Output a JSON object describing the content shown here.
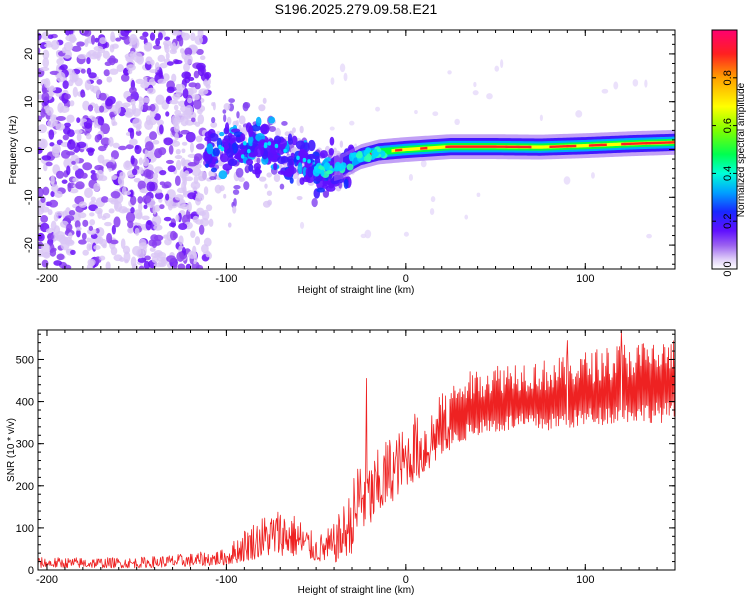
{
  "title": "S196.2025.279.09.58.E21",
  "chart_data": [
    {
      "type": "heatmap",
      "name": "spectrogram",
      "xlabel": "Height of straight line (km)",
      "ylabel": "Frequency (Hz)",
      "xlim": [
        -205,
        150
      ],
      "ylim": [
        -25,
        25
      ],
      "x_ticks": [
        -200,
        -100,
        0,
        100
      ],
      "y_ticks": [
        -20,
        -10,
        0,
        10,
        20
      ],
      "colorbar": {
        "label": "Normalized spectral amplitude",
        "range": [
          0,
          1
        ],
        "ticks": [
          0.0,
          0.2,
          0.4,
          0.6,
          0.8
        ],
        "colormap": [
          "#ffffff",
          "#d8c8f4",
          "#9050e8",
          "#6000ff",
          "#1020ff",
          "#00a0ff",
          "#00ffd0",
          "#00ff40",
          "#80ff00",
          "#ffff00",
          "#ffa000",
          "#ff2000",
          "#ff0060"
        ]
      },
      "ridge": [
        {
          "x": -110,
          "f": -0.5
        },
        {
          "x": -80,
          "f": 0.5
        },
        {
          "x": -60,
          "f": -2.0
        },
        {
          "x": -45,
          "f": -4.5
        },
        {
          "x": -35,
          "f": -3.5
        },
        {
          "x": -25,
          "f": -1.5
        },
        {
          "x": -15,
          "f": -0.5
        },
        {
          "x": 0,
          "f": 0.0
        },
        {
          "x": 25,
          "f": 0.6
        },
        {
          "x": 50,
          "f": 0.6
        },
        {
          "x": 75,
          "f": 0.5
        },
        {
          "x": 100,
          "f": 0.8
        },
        {
          "x": 125,
          "f": 1.2
        },
        {
          "x": 150,
          "f": 1.5
        }
      ]
    },
    {
      "type": "line",
      "name": "snr",
      "xlabel": "Height of straight line (km)",
      "ylabel": "SNR (10 * v/v)",
      "xlim": [
        -205,
        150
      ],
      "ylim": [
        0,
        570
      ],
      "x_ticks": [
        -200,
        -100,
        0,
        100
      ],
      "y_ticks": [
        0,
        100,
        200,
        300,
        400,
        500
      ],
      "color": "#ee2222",
      "envelope": {
        "x": [
          -205,
          -150,
          -120,
          -100,
          -90,
          -80,
          -70,
          -60,
          -50,
          -40,
          -30,
          -25,
          -20,
          -10,
          0,
          10,
          20,
          30,
          40,
          60,
          80,
          100,
          120,
          150
        ],
        "low": [
          5,
          5,
          8,
          12,
          20,
          30,
          35,
          30,
          20,
          15,
          40,
          80,
          100,
          150,
          200,
          220,
          270,
          300,
          320,
          330,
          330,
          340,
          350,
          350
        ],
        "high": [
          30,
          30,
          40,
          50,
          100,
          130,
          150,
          130,
          80,
          110,
          200,
          320,
          260,
          320,
          340,
          380,
          420,
          460,
          480,
          500,
          500,
          520,
          540,
          550
        ]
      },
      "spikes": [
        {
          "x": -22,
          "y": 455
        },
        {
          "x": 5,
          "y": 370
        },
        {
          "x": 90,
          "y": 545
        },
        {
          "x": 120,
          "y": 568
        }
      ]
    }
  ]
}
